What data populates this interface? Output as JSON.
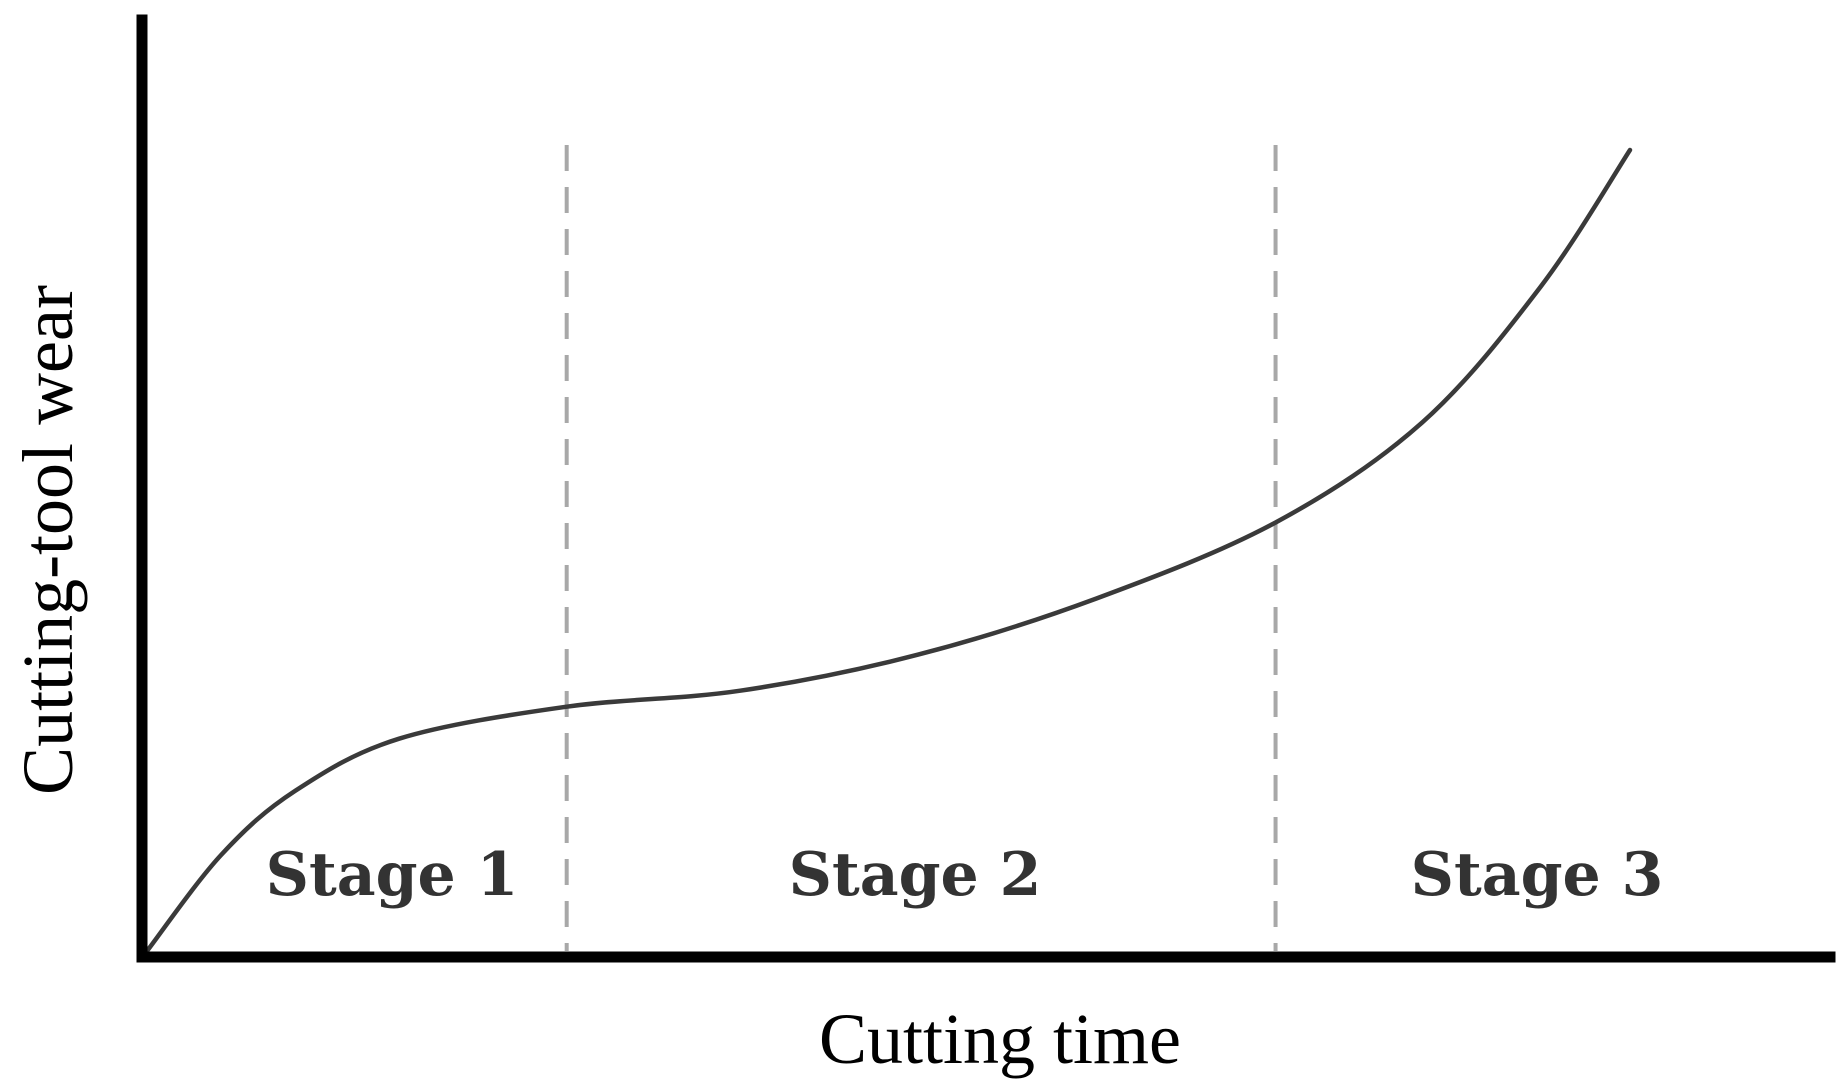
{
  "chart_data": {
    "type": "line",
    "title": "",
    "xlabel": "Cutting time",
    "ylabel": "Cutting-tool wear",
    "xlim": [
      0,
      1
    ],
    "ylim": [
      0,
      1
    ],
    "x_ticks_shown": false,
    "y_ticks_shown": false,
    "grid": false,
    "legend": "none",
    "stage_boundaries": [
      0.283,
      0.761
    ],
    "stages": [
      {
        "label": "Stage 1",
        "x_range": [
          0,
          0.283
        ]
      },
      {
        "label": "Stage 2",
        "x_range": [
          0.283,
          0.761
        ]
      },
      {
        "label": "Stage 3",
        "x_range": [
          0.761,
          1.0
        ]
      }
    ],
    "series": [
      {
        "values": [
          {
            "x": 0.0,
            "y": 0.0
          },
          {
            "x": 0.05,
            "y": 0.12
          },
          {
            "x": 0.1,
            "y": 0.2
          },
          {
            "x": 0.17,
            "y": 0.265
          },
          {
            "x": 0.283,
            "y": 0.305
          },
          {
            "x": 0.4,
            "y": 0.325
          },
          {
            "x": 0.52,
            "y": 0.37
          },
          {
            "x": 0.64,
            "y": 0.44
          },
          {
            "x": 0.761,
            "y": 0.535
          },
          {
            "x": 0.86,
            "y": 0.66
          },
          {
            "x": 0.94,
            "y": 0.83
          },
          {
            "x": 1.0,
            "y": 1.0
          }
        ]
      }
    ],
    "colors": {
      "curve": "#3a3a3a",
      "axes": "#000000",
      "dividers": "#a8a8a8",
      "stage_text": "#333333"
    }
  }
}
